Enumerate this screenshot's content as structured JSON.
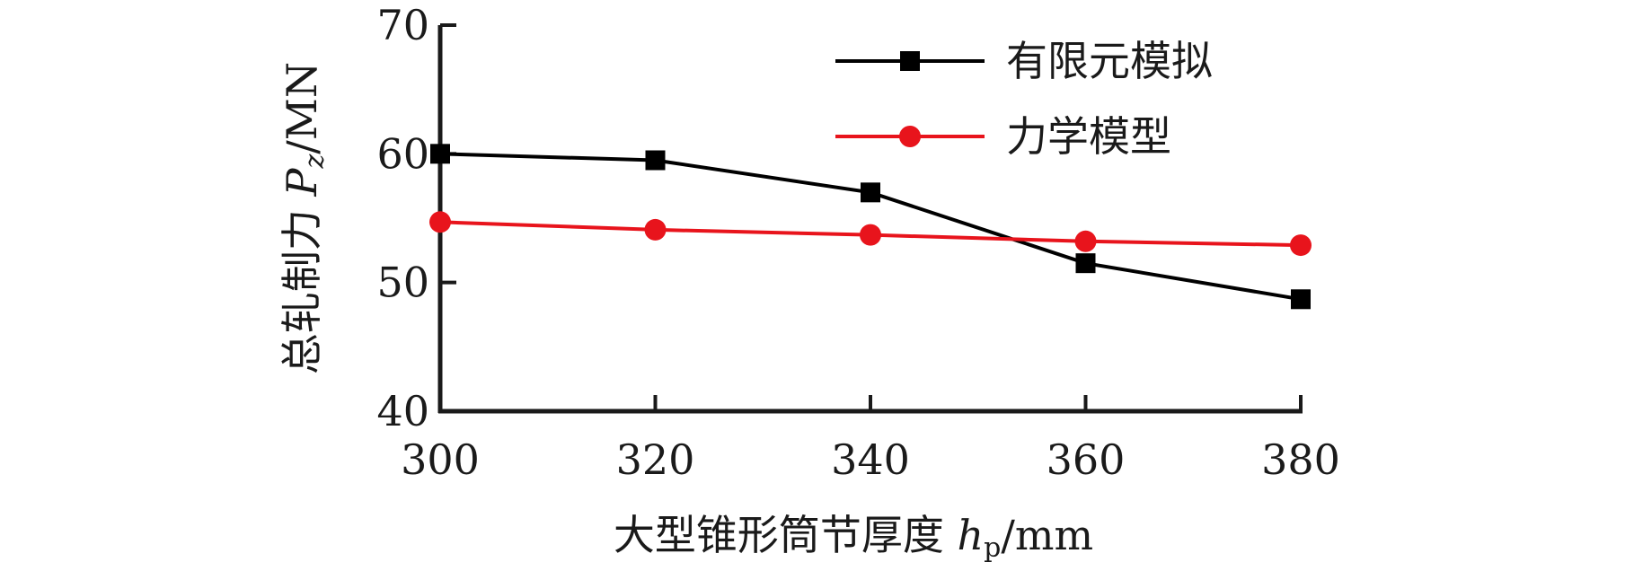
{
  "chart_data": {
    "type": "line",
    "x": [
      300,
      320,
      340,
      360,
      380
    ],
    "xlim": [
      300,
      380
    ],
    "ylim": [
      40,
      70
    ],
    "x_ticks": [
      300,
      320,
      340,
      360,
      380
    ],
    "y_ticks": [
      40,
      50,
      60,
      70
    ],
    "xlabel": {
      "main": "大型锥形筒节厚度 ",
      "symbol": "h",
      "subscript": "p",
      "unit": "/mm"
    },
    "ylabel": {
      "main": "总轧制力 ",
      "symbol": "P",
      "subscript": "z",
      "unit": "/MN"
    },
    "legend_position": "top-right",
    "grid": false,
    "series": [
      {
        "name": "有限元模拟",
        "marker": "square",
        "color": "#000000",
        "values": [
          60.0,
          59.5,
          57.0,
          51.5,
          48.7
        ]
      },
      {
        "name": "力学模型",
        "marker": "circle",
        "color": "#e8141c",
        "values": [
          54.7,
          54.1,
          53.7,
          53.2,
          52.9
        ]
      }
    ]
  }
}
